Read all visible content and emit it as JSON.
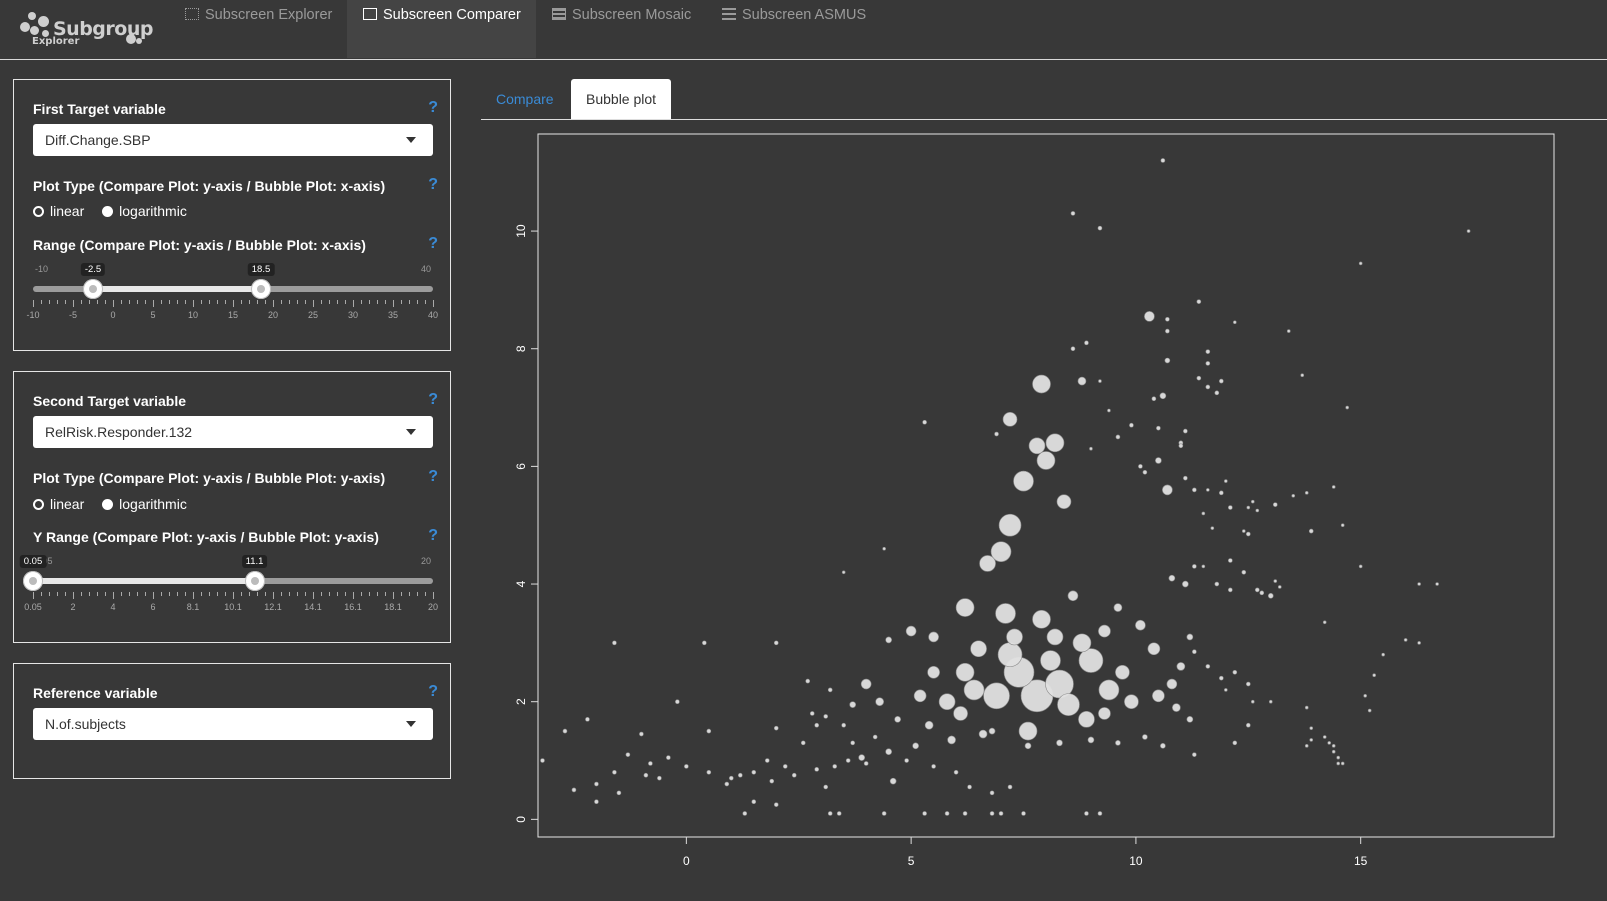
{
  "brand": {
    "line1": "Subgroup",
    "line2": "Explorer"
  },
  "nav": {
    "tabs": [
      {
        "label": "Subscreen Explorer",
        "icon": "grid-dots-icon"
      },
      {
        "label": "Subscreen Comparer",
        "icon": "compare-image-icon"
      },
      {
        "label": "Subscreen Mosaic",
        "icon": "table-icon"
      },
      {
        "label": "Subscreen ASMUS",
        "icon": "list-icon"
      }
    ],
    "active_index": 1
  },
  "first_target": {
    "title": "First Target variable",
    "selected": "Diff.Change.SBP",
    "plot_type_label": "Plot Type (Compare Plot: y-axis / Bubble Plot: x-axis)",
    "options": [
      "linear",
      "logarithmic"
    ],
    "selected_option": "logarithmic",
    "range_label": "Range (Compare Plot: y-axis / Bubble Plot: x-axis)",
    "slider": {
      "min": -10,
      "max": 40,
      "low": -2.5,
      "high": 18.5,
      "min_label": "-10",
      "max_label": "40",
      "low_label": "-2.5",
      "high_label": "18.5",
      "tick_labels": [
        "-10",
        "-5",
        "0",
        "5",
        "10",
        "15",
        "20",
        "25",
        "30",
        "35",
        "40"
      ]
    }
  },
  "second_target": {
    "title": "Second Target variable",
    "selected": "RelRisk.Responder.132",
    "plot_type_label": "Plot Type (Compare Plot: y-axis / Bubble Plot: y-axis)",
    "options": [
      "linear",
      "logarithmic"
    ],
    "selected_option": "logarithmic",
    "range_label": "Y Range (Compare Plot: y-axis / Bubble Plot: y-axis)",
    "slider": {
      "min": 0.05,
      "max": 20,
      "low": 0.05,
      "high": 11.1,
      "min_label": "0.05",
      "max_label": "20",
      "low_label": "0.05",
      "high_label": "11.1",
      "tick_labels": [
        "0.05",
        "2",
        "4",
        "6",
        "8.1",
        "10.1",
        "12.1",
        "14.1",
        "16.1",
        "18.1",
        "20"
      ]
    }
  },
  "reference": {
    "title": "Reference variable",
    "selected": "N.of.subjects"
  },
  "help_symbol": "?",
  "main_tabs": [
    "Compare",
    "Bubble plot"
  ],
  "main_active": 1,
  "colors": {
    "accent": "#3a8bd6",
    "background": "#383838",
    "bubble": "#e0e0e0"
  },
  "chart_data": {
    "type": "scatter",
    "title": "",
    "xlabel": "",
    "ylabel": "",
    "xlim": [
      -3.3,
      19.3
    ],
    "ylim": [
      -0.3,
      11.65
    ],
    "x_ticks": [
      0,
      5,
      10,
      15
    ],
    "y_ticks": [
      0,
      2,
      4,
      6,
      8,
      10
    ],
    "grid": false,
    "points": [
      [
        10.6,
        11.2,
        2
      ],
      [
        8.6,
        10.3,
        2
      ],
      [
        9.2,
        10.05,
        2
      ],
      [
        17.4,
        10.0,
        1.5
      ],
      [
        15.0,
        9.45,
        1.5
      ],
      [
        10.3,
        8.55,
        5
      ],
      [
        10.7,
        8.5,
        2
      ],
      [
        11.4,
        8.8,
        2
      ],
      [
        10.7,
        8.3,
        2
      ],
      [
        12.2,
        8.45,
        1.5
      ],
      [
        13.4,
        8.3,
        1.5
      ],
      [
        8.6,
        8.0,
        2
      ],
      [
        8.9,
        8.1,
        2
      ],
      [
        10.7,
        7.8,
        2.5
      ],
      [
        11.6,
        7.95,
        2
      ],
      [
        11.6,
        7.75,
        2
      ],
      [
        11.4,
        7.5,
        2
      ],
      [
        11.6,
        7.35,
        2
      ],
      [
        11.8,
        7.25,
        2
      ],
      [
        11.9,
        7.45,
        2
      ],
      [
        13.7,
        7.55,
        1.5
      ],
      [
        7.9,
        7.4,
        9
      ],
      [
        8.8,
        7.45,
        4
      ],
      [
        9.2,
        7.45,
        1.5
      ],
      [
        10.6,
        7.2,
        3
      ],
      [
        10.4,
        7.15,
        2
      ],
      [
        14.7,
        7.0,
        1.5
      ],
      [
        9.4,
        6.95,
        1.5
      ],
      [
        7.2,
        6.8,
        7
      ],
      [
        5.3,
        6.75,
        2
      ],
      [
        9.9,
        6.7,
        2
      ],
      [
        10.5,
        6.65,
        2
      ],
      [
        11.1,
        6.6,
        2
      ],
      [
        6.9,
        6.55,
        2
      ],
      [
        9.6,
        6.5,
        2
      ],
      [
        11.0,
        6.4,
        2
      ],
      [
        11.0,
        6.35,
        2
      ],
      [
        7.8,
        6.35,
        8
      ],
      [
        8.2,
        6.4,
        9
      ],
      [
        8.0,
        6.1,
        9
      ],
      [
        9.0,
        6.3,
        1.5
      ],
      [
        10.1,
        6.0,
        2
      ],
      [
        10.5,
        6.1,
        3
      ],
      [
        10.2,
        5.9,
        2
      ],
      [
        11.1,
        5.8,
        2
      ],
      [
        11.3,
        5.6,
        2
      ],
      [
        11.6,
        5.6,
        1.5
      ],
      [
        12.0,
        5.75,
        1.5
      ],
      [
        7.5,
        5.75,
        10
      ],
      [
        8.4,
        5.4,
        7
      ],
      [
        10.7,
        5.6,
        5
      ],
      [
        12.1,
        5.3,
        2
      ],
      [
        12.7,
        5.25,
        1.5
      ],
      [
        12.6,
        5.4,
        1.5
      ],
      [
        13.5,
        5.5,
        1.5
      ],
      [
        12.5,
        5.3,
        1.5
      ],
      [
        14.4,
        5.65,
        1.5
      ],
      [
        13.8,
        5.55,
        1.5
      ],
      [
        11.9,
        5.55,
        2
      ],
      [
        11.5,
        5.2,
        1.5
      ],
      [
        13.1,
        5.35,
        2
      ],
      [
        11.7,
        4.95,
        1.5
      ],
      [
        12.5,
        4.85,
        2
      ],
      [
        12.4,
        4.9,
        1.5
      ],
      [
        13.9,
        4.9,
        2
      ],
      [
        14.6,
        5.0,
        1.5
      ],
      [
        7.2,
        5.0,
        11
      ],
      [
        7.0,
        4.55,
        10
      ],
      [
        12.1,
        4.4,
        2
      ],
      [
        11.5,
        4.3,
        1.5
      ],
      [
        10.8,
        4.1,
        3
      ],
      [
        11.3,
        4.3,
        2
      ],
      [
        11.1,
        4.0,
        3
      ],
      [
        12.4,
        4.2,
        2
      ],
      [
        11.8,
        4.0,
        2
      ],
      [
        12.1,
        3.9,
        2
      ],
      [
        13.1,
        4.05,
        1.5
      ],
      [
        12.7,
        3.9,
        2
      ],
      [
        12.8,
        3.85,
        2
      ],
      [
        13.0,
        3.8,
        2.5
      ],
      [
        13.2,
        3.95,
        1.5
      ],
      [
        15.0,
        4.3,
        1.5
      ],
      [
        14.2,
        3.35,
        1.5
      ],
      [
        16.3,
        4.0,
        1.5
      ],
      [
        16.7,
        4.0,
        1.5
      ],
      [
        4.4,
        4.6,
        1.5
      ],
      [
        3.5,
        4.2,
        1.5
      ],
      [
        6.7,
        4.35,
        8
      ],
      [
        6.2,
        3.6,
        9
      ],
      [
        7.1,
        3.5,
        10
      ],
      [
        5.0,
        3.2,
        5
      ],
      [
        4.5,
        3.05,
        3
      ],
      [
        15.3,
        2.45,
        1.5
      ],
      [
        16.3,
        3.0,
        1.5
      ],
      [
        15.5,
        2.8,
        1.5
      ],
      [
        16.0,
        3.05,
        1.5
      ],
      [
        15.1,
        2.1,
        1.5
      ],
      [
        15.2,
        1.85,
        1.5
      ],
      [
        11.2,
        3.1,
        3
      ],
      [
        11.3,
        2.85,
        2
      ],
      [
        11.6,
        2.6,
        2
      ],
      [
        12.2,
        2.5,
        2
      ],
      [
        11.9,
        2.4,
        2
      ],
      [
        12.0,
        2.2,
        1.5
      ],
      [
        12.5,
        2.3,
        2
      ],
      [
        12.6,
        2.0,
        1.5
      ],
      [
        13.0,
        2.0,
        1.5
      ],
      [
        13.8,
        1.9,
        1.5
      ],
      [
        12.5,
        1.6,
        2
      ],
      [
        12.2,
        1.3,
        2
      ],
      [
        11.3,
        1.1,
        2
      ],
      [
        13.9,
        1.55,
        1.5
      ],
      [
        13.8,
        1.25,
        1.5
      ],
      [
        13.9,
        1.35,
        1.5
      ],
      [
        14.2,
        1.4,
        1.5
      ],
      [
        14.3,
        1.3,
        1.5
      ],
      [
        14.4,
        1.15,
        1.5
      ],
      [
        14.5,
        1.05,
        1.5
      ],
      [
        14.6,
        0.95,
        1.5
      ],
      [
        14.4,
        1.25,
        1.5
      ],
      [
        14.5,
        0.95,
        1.5
      ],
      [
        7.8,
        2.1,
        16
      ],
      [
        7.4,
        2.5,
        15
      ],
      [
        8.3,
        2.3,
        14
      ],
      [
        6.9,
        2.1,
        13
      ],
      [
        9.0,
        2.7,
        12
      ],
      [
        7.2,
        2.8,
        12
      ],
      [
        8.5,
        1.95,
        11
      ],
      [
        6.4,
        2.2,
        10
      ],
      [
        9.4,
        2.2,
        10
      ],
      [
        7.6,
        1.5,
        9
      ],
      [
        8.9,
        1.7,
        8
      ],
      [
        6.2,
        2.5,
        9
      ],
      [
        5.8,
        2.0,
        8
      ],
      [
        9.7,
        2.5,
        7
      ],
      [
        10.4,
        2.9,
        6
      ],
      [
        10.1,
        3.3,
        5
      ],
      [
        5.5,
        2.5,
        6
      ],
      [
        6.1,
        1.8,
        7
      ],
      [
        7.9,
        3.4,
        9
      ],
      [
        8.2,
        3.1,
        8
      ],
      [
        9.3,
        3.2,
        6
      ],
      [
        9.6,
        3.6,
        4
      ],
      [
        8.6,
        3.8,
        5
      ],
      [
        5.2,
        2.1,
        6
      ],
      [
        4.0,
        2.3,
        5
      ],
      [
        4.3,
        2.0,
        4
      ],
      [
        3.7,
        1.95,
        3
      ],
      [
        4.7,
        1.7,
        3
      ],
      [
        5.4,
        1.6,
        4
      ],
      [
        6.8,
        1.5,
        3
      ],
      [
        7.6,
        1.25,
        3
      ],
      [
        8.3,
        1.3,
        3
      ],
      [
        9.0,
        1.35,
        3
      ],
      [
        9.6,
        1.3,
        2.5
      ],
      [
        10.2,
        1.4,
        2.5
      ],
      [
        10.6,
        1.25,
        2.5
      ],
      [
        8.1,
        2.7,
        10
      ],
      [
        8.8,
        3.0,
        9
      ],
      [
        7.3,
        3.1,
        8
      ],
      [
        6.5,
        2.9,
        8
      ],
      [
        5.5,
        3.1,
        5
      ],
      [
        9.9,
        2.0,
        7
      ],
      [
        10.5,
        2.1,
        6
      ],
      [
        10.8,
        2.3,
        5
      ],
      [
        11.0,
        2.6,
        4
      ],
      [
        10.9,
        1.9,
        4
      ],
      [
        11.2,
        1.7,
        3
      ],
      [
        9.3,
        1.8,
        6
      ],
      [
        6.6,
        1.45,
        4
      ],
      [
        5.9,
        1.35,
        4
      ],
      [
        5.1,
        1.25,
        3
      ],
      [
        4.5,
        1.15,
        3
      ],
      [
        3.9,
        1.05,
        3
      ],
      [
        3.3,
        0.9,
        2
      ],
      [
        2.9,
        0.85,
        2
      ],
      [
        2.4,
        0.75,
        2
      ],
      [
        1.9,
        0.65,
        2
      ],
      [
        1.5,
        0.8,
        2
      ],
      [
        1.0,
        0.7,
        2
      ],
      [
        0.5,
        0.8,
        2
      ],
      [
        0.0,
        0.9,
        2
      ],
      [
        -0.4,
        1.05,
        2
      ],
      [
        -0.8,
        0.95,
        2
      ],
      [
        -1.3,
        1.1,
        2
      ],
      [
        -1.6,
        0.8,
        2
      ],
      [
        -2.0,
        0.6,
        2
      ],
      [
        -2.5,
        0.5,
        2
      ],
      [
        -3.2,
        1.0,
        2
      ],
      [
        -2.0,
        0.3,
        2
      ],
      [
        -2.7,
        1.5,
        2
      ],
      [
        -2.2,
        1.7,
        2
      ],
      [
        -1.0,
        1.45,
        2
      ],
      [
        -0.2,
        2.0,
        2
      ],
      [
        0.5,
        1.5,
        2
      ],
      [
        2.0,
        1.55,
        2
      ],
      [
        2.8,
        1.8,
        2
      ],
      [
        2.7,
        2.35,
        2
      ],
      [
        3.1,
        1.75,
        2
      ],
      [
        3.5,
        1.6,
        2
      ],
      [
        1.8,
        1.0,
        2
      ],
      [
        2.2,
        0.9,
        2
      ],
      [
        2.6,
        1.3,
        2
      ],
      [
        3.1,
        0.55,
        2
      ],
      [
        4.6,
        0.65,
        3
      ],
      [
        6.3,
        0.55,
        2
      ],
      [
        6.8,
        0.45,
        2
      ],
      [
        7.2,
        0.55,
        2
      ],
      [
        1.5,
        0.3,
        2
      ],
      [
        2.0,
        0.25,
        2
      ],
      [
        3.4,
        0.1,
        2
      ],
      [
        3.2,
        0.1,
        2
      ],
      [
        4.4,
        0.1,
        2
      ],
      [
        5.3,
        0.1,
        2
      ],
      [
        5.8,
        0.1,
        2
      ],
      [
        6.2,
        0.1,
        2
      ],
      [
        6.8,
        0.1,
        2
      ],
      [
        7.0,
        0.1,
        2
      ],
      [
        7.5,
        0.1,
        2
      ],
      [
        8.9,
        0.1,
        2
      ],
      [
        9.2,
        0.1,
        2
      ],
      [
        1.3,
        0.1,
        2
      ],
      [
        -1.6,
        3.0,
        2
      ],
      [
        0.4,
        3.0,
        2
      ],
      [
        2.0,
        3.0,
        2
      ],
      [
        3.2,
        2.2,
        2
      ],
      [
        2.9,
        1.6,
        2
      ],
      [
        3.7,
        1.3,
        2
      ],
      [
        4.2,
        1.4,
        2
      ],
      [
        4.0,
        0.95,
        2
      ],
      [
        4.9,
        1.0,
        2
      ],
      [
        5.5,
        0.9,
        2
      ],
      [
        6.0,
        0.8,
        2
      ],
      [
        3.6,
        1.0,
        2
      ],
      [
        -0.6,
        0.7,
        2
      ],
      [
        -1.5,
        0.45,
        2
      ],
      [
        -0.9,
        0.75,
        2
      ],
      [
        0.9,
        0.6,
        2
      ],
      [
        1.2,
        0.75,
        2
      ]
    ]
  }
}
